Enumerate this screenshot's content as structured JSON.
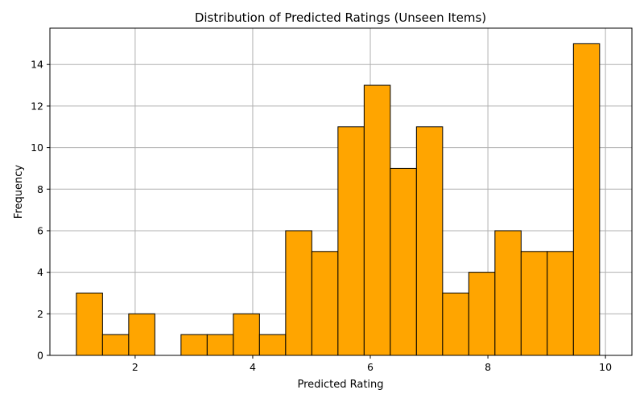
{
  "chart_data": {
    "type": "bar",
    "subtype": "histogram",
    "title": "Distribution of Predicted Ratings (Unseen Items)",
    "xlabel": "Predicted Rating",
    "ylabel": "Frequency",
    "xlim": [
      0.55,
      10.45
    ],
    "ylim": [
      0,
      15.75
    ],
    "xticks": [
      2,
      4,
      6,
      8,
      10
    ],
    "yticks": [
      0,
      2,
      4,
      6,
      8,
      10,
      12,
      14
    ],
    "grid": true,
    "bin_range": [
      1.0,
      9.9
    ],
    "bins": 20,
    "counts": [
      3,
      1,
      2,
      0,
      1,
      1,
      2,
      1,
      6,
      5,
      11,
      13,
      9,
      11,
      3,
      4,
      6,
      5,
      5,
      15
    ],
    "bar_color": "#ffa500",
    "edge_color": "#000000",
    "grid_color": "#b0b0b0"
  }
}
